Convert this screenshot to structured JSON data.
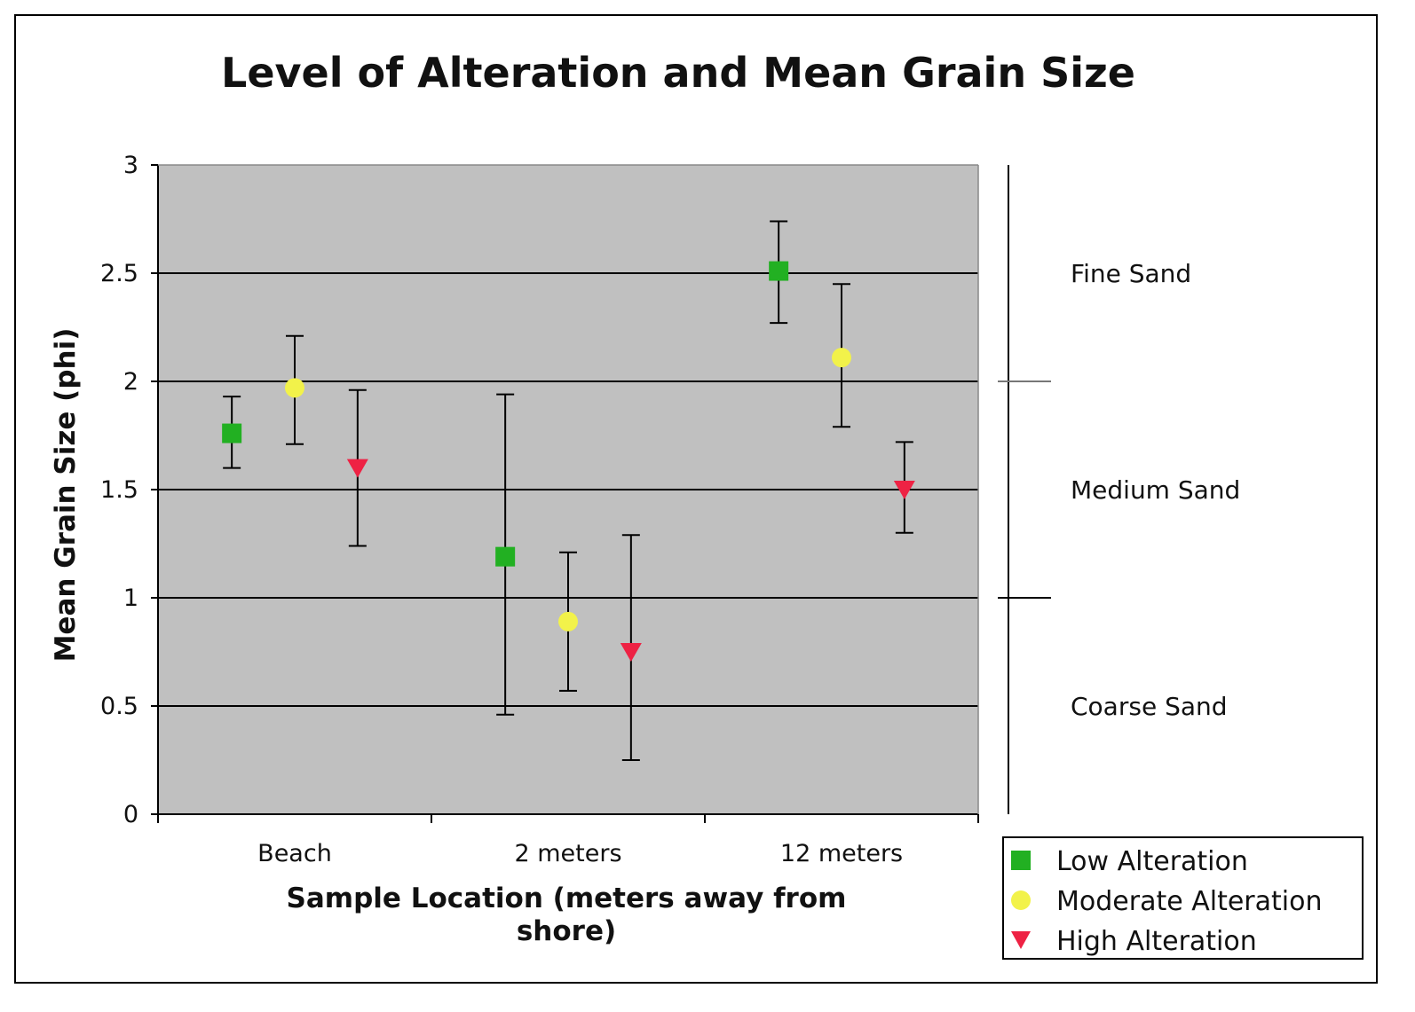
{
  "chart_data": {
    "type": "scatter",
    "title": "Level of Alteration and Mean Grain Size",
    "xlabel": [
      "Sample Location (meters away from",
      "shore)"
    ],
    "ylabel": "Mean Grain Size (phi)",
    "categories": [
      "Beach",
      "2 meters",
      "12 meters"
    ],
    "ylim": [
      0,
      3
    ],
    "yticks": [
      "0",
      "0.5",
      "1",
      "1.5",
      "2",
      "2.5",
      "3"
    ],
    "grid": true,
    "plot_background": "#c0c0c0",
    "legend_placement": "bottom-right",
    "series": [
      {
        "name": "Low Alteration",
        "marker": "square",
        "color": "#22b022",
        "values": [
          1.76,
          1.19,
          2.51
        ],
        "err_low": [
          1.6,
          0.46,
          2.27
        ],
        "err_high": [
          1.93,
          1.94,
          2.74
        ]
      },
      {
        "name": "Moderate Alteration",
        "marker": "circle",
        "color": "#f2f24a",
        "values": [
          1.97,
          0.89,
          2.11
        ],
        "err_low": [
          1.71,
          0.57,
          1.79
        ],
        "err_high": [
          2.21,
          1.21,
          2.45
        ]
      },
      {
        "name": "High Alteration",
        "marker": "triangle-down",
        "color": "#ee2244",
        "values": [
          1.6,
          0.75,
          1.5
        ],
        "err_low": [
          1.24,
          0.25,
          1.3
        ],
        "err_high": [
          1.96,
          1.29,
          1.72
        ]
      }
    ],
    "size_classes": [
      {
        "label": "Fine Sand",
        "y_value": 2.5
      },
      {
        "label": "Medium Sand",
        "y_value": 1.5
      },
      {
        "label": "Coarse Sand",
        "y_value": 0.5
      }
    ],
    "class_boundaries": [
      2,
      1
    ]
  }
}
